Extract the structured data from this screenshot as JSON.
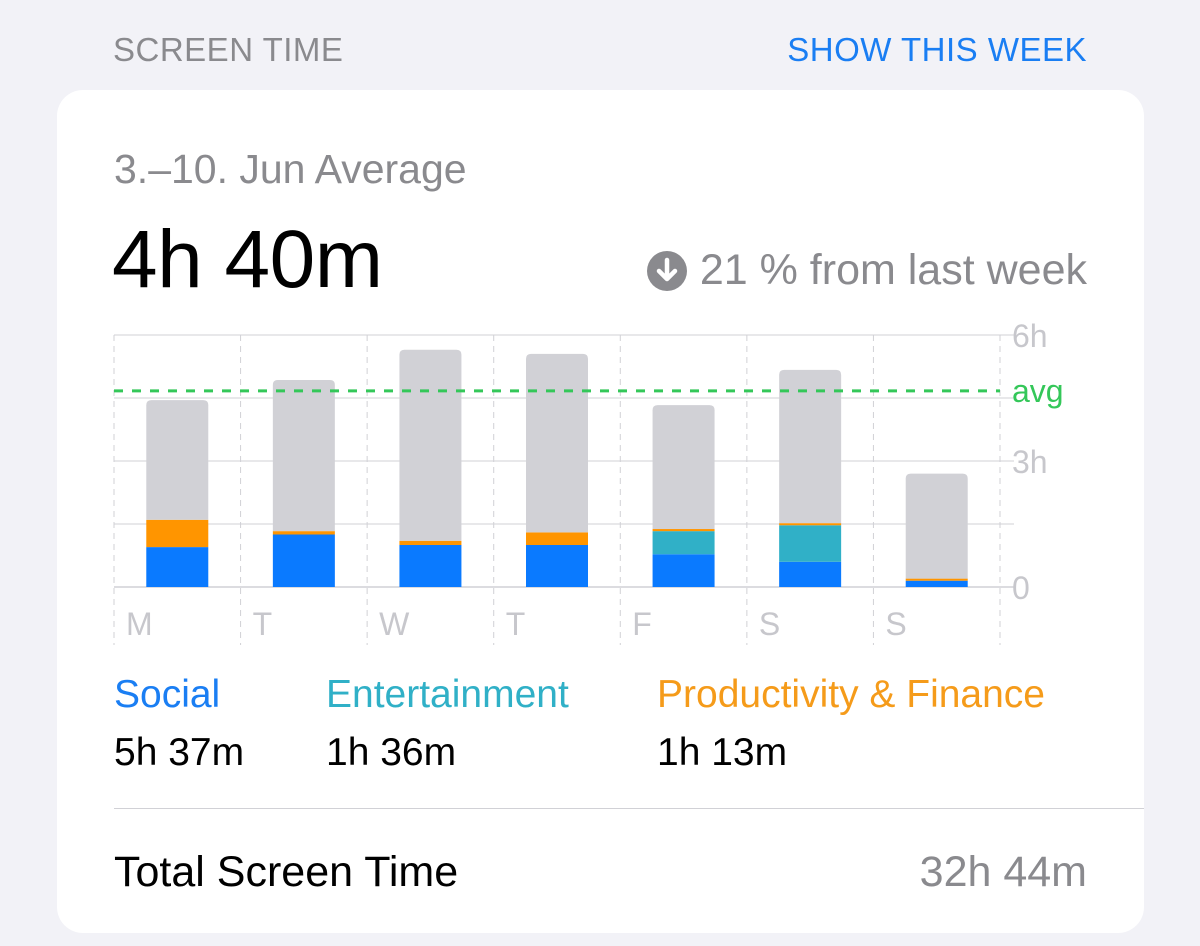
{
  "header": {
    "title": "SCREEN TIME",
    "action_label": "SHOW THIS WEEK"
  },
  "summary": {
    "range_label": "3.–10. Jun Average",
    "average": "4h 40m",
    "change_text": "21 % from last week",
    "change_icon": "arrow-down-circle-icon"
  },
  "chart_data": {
    "type": "bar",
    "stacked": true,
    "categories": [
      "M",
      "T",
      "W",
      "T",
      "F",
      "S",
      "S"
    ],
    "y_tick_labels": [
      "0",
      "3h",
      "6h"
    ],
    "ylim": [
      0,
      6
    ],
    "average_label": "avg",
    "average_value": 4.67,
    "series": [
      {
        "name": "Social",
        "color": "#0a7aff",
        "values": [
          0.95,
          1.25,
          1.0,
          1.0,
          0.78,
          0.6,
          0.15
        ]
      },
      {
        "name": "Entertainment",
        "color": "#30b0c7",
        "values": [
          0,
          0,
          0,
          0,
          0.55,
          0.87,
          0
        ]
      },
      {
        "name": "Productivity & Finance",
        "color": "#ff9500",
        "values": [
          0.65,
          0.08,
          0.1,
          0.3,
          0.05,
          0.05,
          0.05
        ]
      },
      {
        "color": "#d1d1d6",
        "values": [
          2.85,
          3.6,
          4.55,
          4.25,
          2.95,
          3.65,
          2.5
        ]
      }
    ]
  },
  "legend": [
    {
      "name": "Social",
      "value": "5h 37m",
      "color": "#1a7ef3"
    },
    {
      "name": "Entertainment",
      "value": "1h 36m",
      "color": "#30b0c7"
    },
    {
      "name": "Productivity & Finance",
      "value": "1h 13m",
      "color": "#f59b1a"
    }
  ],
  "total": {
    "label": "Total Screen Time",
    "value": "32h 44m"
  },
  "colors": {
    "accent": "#1a7ef3",
    "avg_line": "#34c759",
    "grid": "#d1d1d6",
    "secondary_text": "#8a8a8e"
  }
}
